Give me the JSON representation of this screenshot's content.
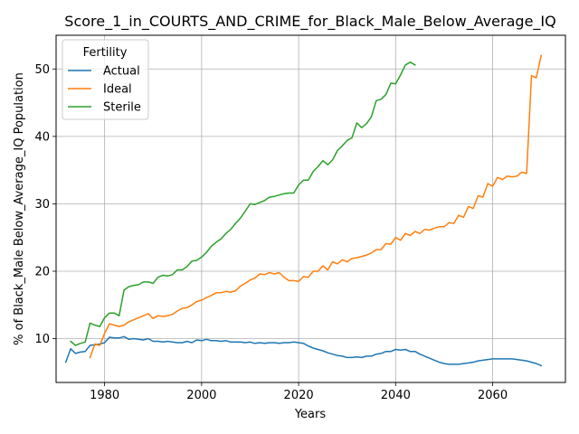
{
  "chart_data": {
    "type": "line",
    "title": "Score_1_in_COURTS_AND_CRIME_for_Black_Male_Below_Average_IQ",
    "xlabel": "Years",
    "ylabel": "% of Black_Male Below_Average_IQ Population",
    "xlim": [
      1970,
      2075
    ],
    "ylim": [
      3.5,
      55
    ],
    "xticks": [
      1980,
      2000,
      2020,
      2040,
      2060
    ],
    "yticks": [
      10,
      20,
      30,
      40,
      50
    ],
    "grid": true,
    "legend": {
      "title": "Fertility",
      "placement": "top-left"
    },
    "series": [
      {
        "name": "Actual",
        "color": "#1f77b4",
        "x": [
          1972,
          1973,
          1974,
          1975,
          1976,
          1977,
          1978,
          1979,
          1980,
          1981,
          1982,
          1983,
          1984,
          1985,
          1986,
          1987,
          1988,
          1989,
          1990,
          1991,
          1992,
          1993,
          1994,
          1995,
          1996,
          1997,
          1998,
          1999,
          2000,
          2001,
          2002,
          2003,
          2004,
          2005,
          2006,
          2007,
          2008,
          2009,
          2010,
          2011,
          2012,
          2013,
          2014,
          2015,
          2016,
          2017,
          2018,
          2019,
          2020,
          2021,
          2022,
          2023,
          2024,
          2025,
          2026,
          2027,
          2028,
          2029,
          2030,
          2031,
          2032,
          2033,
          2034,
          2035,
          2036,
          2037,
          2038,
          2039,
          2040,
          2041,
          2042,
          2043,
          2044,
          2045,
          2046,
          2047,
          2048,
          2049,
          2050,
          2051,
          2052,
          2053,
          2054,
          2055,
          2056,
          2057,
          2058,
          2059,
          2060,
          2061,
          2062,
          2063,
          2064,
          2065,
          2066,
          2067,
          2068,
          2069,
          2070
        ],
        "values": [
          6.5,
          8.5,
          7.8,
          8.0,
          8.1,
          9.0,
          9.1,
          9.2,
          9.4,
          10.2,
          10.1,
          10.1,
          10.3,
          9.9,
          10.0,
          9.9,
          9.8,
          10.0,
          9.6,
          9.6,
          9.5,
          9.6,
          9.5,
          9.4,
          9.4,
          9.6,
          9.4,
          9.8,
          9.7,
          9.9,
          9.7,
          9.7,
          9.6,
          9.7,
          9.5,
          9.5,
          9.5,
          9.4,
          9.5,
          9.3,
          9.4,
          9.3,
          9.4,
          9.4,
          9.3,
          9.4,
          9.4,
          9.5,
          9.4,
          9.3,
          8.9,
          8.6,
          8.4,
          8.2,
          7.9,
          7.7,
          7.5,
          7.4,
          7.2,
          7.2,
          7.3,
          7.2,
          7.4,
          7.4,
          7.7,
          7.8,
          8.1,
          8.1,
          8.4,
          8.3,
          8.4,
          8.1,
          8.1,
          7.7,
          7.4,
          7.1,
          6.8,
          6.5,
          6.3,
          6.2,
          6.2,
          6.2,
          6.3,
          6.4,
          6.5,
          6.7,
          6.8,
          6.9,
          7.0,
          7.0,
          7.0,
          7.0,
          7.0,
          6.9,
          6.8,
          6.7,
          6.5,
          6.3,
          6.0
        ]
      },
      {
        "name": "Ideal",
        "color": "#ff7f0e",
        "x": [
          1977,
          1978,
          1979,
          1980,
          1981,
          1982,
          1983,
          1984,
          1985,
          1986,
          1987,
          1988,
          1989,
          1990,
          1991,
          1992,
          1993,
          1994,
          1995,
          1996,
          1997,
          1998,
          1999,
          2000,
          2001,
          2002,
          2003,
          2004,
          2005,
          2006,
          2007,
          2008,
          2009,
          2010,
          2011,
          2012,
          2013,
          2014,
          2015,
          2016,
          2017,
          2018,
          2019,
          2020,
          2021,
          2022,
          2023,
          2024,
          2025,
          2026,
          2027,
          2028,
          2029,
          2030,
          2031,
          2032,
          2033,
          2034,
          2035,
          2036,
          2037,
          2038,
          2039,
          2040,
          2041,
          2042,
          2043,
          2044,
          2045,
          2046,
          2047,
          2048,
          2049,
          2050,
          2051,
          2052,
          2053,
          2054,
          2055,
          2056,
          2057,
          2058,
          2059,
          2060,
          2061,
          2062,
          2063,
          2064,
          2065,
          2066,
          2067,
          2068,
          2069,
          2070
        ],
        "values": [
          7.2,
          9.2,
          9.0,
          10.8,
          12.2,
          12.0,
          11.8,
          12.0,
          12.5,
          12.8,
          13.1,
          13.4,
          13.7,
          13.0,
          13.4,
          13.3,
          13.4,
          13.6,
          14.1,
          14.5,
          14.6,
          15.0,
          15.5,
          15.7,
          16.1,
          16.4,
          16.8,
          16.8,
          17.0,
          16.9,
          17.1,
          17.8,
          18.2,
          18.7,
          19.0,
          19.6,
          19.5,
          19.8,
          19.6,
          19.8,
          19.1,
          18.6,
          18.6,
          18.5,
          19.2,
          19.1,
          20.0,
          20.0,
          20.8,
          20.2,
          21.4,
          21.1,
          21.7,
          21.4,
          21.9,
          22.0,
          22.2,
          22.4,
          22.7,
          23.2,
          23.2,
          24.1,
          24.0,
          25.0,
          24.6,
          25.6,
          25.3,
          25.9,
          25.6,
          26.2,
          26.1,
          26.4,
          26.6,
          26.6,
          27.2,
          27.1,
          28.3,
          28.0,
          29.6,
          29.3,
          31.2,
          31.0,
          33.0,
          32.6,
          33.9,
          33.6,
          34.1,
          34.0,
          34.1,
          34.7,
          34.5,
          49.0,
          48.7,
          52.0
        ]
      },
      {
        "name": "Sterile",
        "color": "#2ca02c",
        "x": [
          1973,
          1974,
          1975,
          1976,
          1977,
          1978,
          1979,
          1980,
          1981,
          1982,
          1983,
          1984,
          1985,
          1986,
          1987,
          1988,
          1989,
          1990,
          1991,
          1992,
          1993,
          1994,
          1995,
          1996,
          1997,
          1998,
          1999,
          2000,
          2001,
          2002,
          2003,
          2004,
          2005,
          2006,
          2007,
          2008,
          2009,
          2010,
          2011,
          2012,
          2013,
          2014,
          2015,
          2016,
          2017,
          2018,
          2019,
          2020,
          2021,
          2022,
          2023,
          2024,
          2025,
          2026,
          2027,
          2028,
          2029,
          2030,
          2031,
          2032,
          2033,
          2034,
          2035,
          2036,
          2037,
          2038,
          2039,
          2040,
          2041,
          2042,
          2043,
          2044
        ],
        "values": [
          9.6,
          9.0,
          9.3,
          9.5,
          12.3,
          12.0,
          11.8,
          13.1,
          13.8,
          13.8,
          13.4,
          17.2,
          17.7,
          17.9,
          18.0,
          18.4,
          18.4,
          18.2,
          19.1,
          19.4,
          19.3,
          19.5,
          20.2,
          20.2,
          20.7,
          21.5,
          21.6,
          22.1,
          22.8,
          23.7,
          24.3,
          24.8,
          25.6,
          26.2,
          27.1,
          27.9,
          28.9,
          30.0,
          29.9,
          30.2,
          30.5,
          31.0,
          31.1,
          31.3,
          31.5,
          31.6,
          31.6,
          32.8,
          33.5,
          33.5,
          34.8,
          35.5,
          36.4,
          35.8,
          36.5,
          37.9,
          38.6,
          39.4,
          39.8,
          42.0,
          41.3,
          41.9,
          42.9,
          45.3,
          45.5,
          46.2,
          47.9,
          47.8,
          49.1,
          50.6,
          51.0,
          50.6
        ]
      }
    ]
  }
}
